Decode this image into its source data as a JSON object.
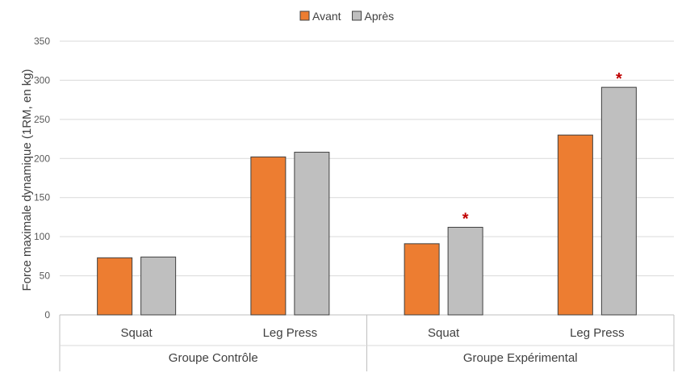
{
  "chart_data": {
    "type": "bar",
    "title": "",
    "ylabel": "Force maximale dynamique (1RM, en kg)",
    "ylim": [
      0,
      350
    ],
    "yticks": [
      0,
      50,
      100,
      150,
      200,
      250,
      300,
      350
    ],
    "grid": true,
    "legend_position": "top-center",
    "groups": [
      {
        "label": "Groupe Contrôle",
        "categories": [
          "Squat",
          "Leg Press"
        ]
      },
      {
        "label": "Groupe Expérimental",
        "categories": [
          "Squat",
          "Leg Press"
        ]
      }
    ],
    "categories": [
      "Squat",
      "Leg Press",
      "Squat",
      "Leg Press"
    ],
    "series": [
      {
        "name": "Avant",
        "color": "#ED7D31",
        "values": [
          73,
          202,
          91,
          230
        ]
      },
      {
        "name": "Après",
        "color": "#BFBFBF",
        "values": [
          74,
          208,
          112,
          291
        ]
      }
    ],
    "annotations": [
      {
        "text": "*",
        "series": "Après",
        "category_index": 2,
        "color": "#C00000"
      },
      {
        "text": "*",
        "series": "Après",
        "category_index": 3,
        "color": "#C00000"
      }
    ]
  }
}
